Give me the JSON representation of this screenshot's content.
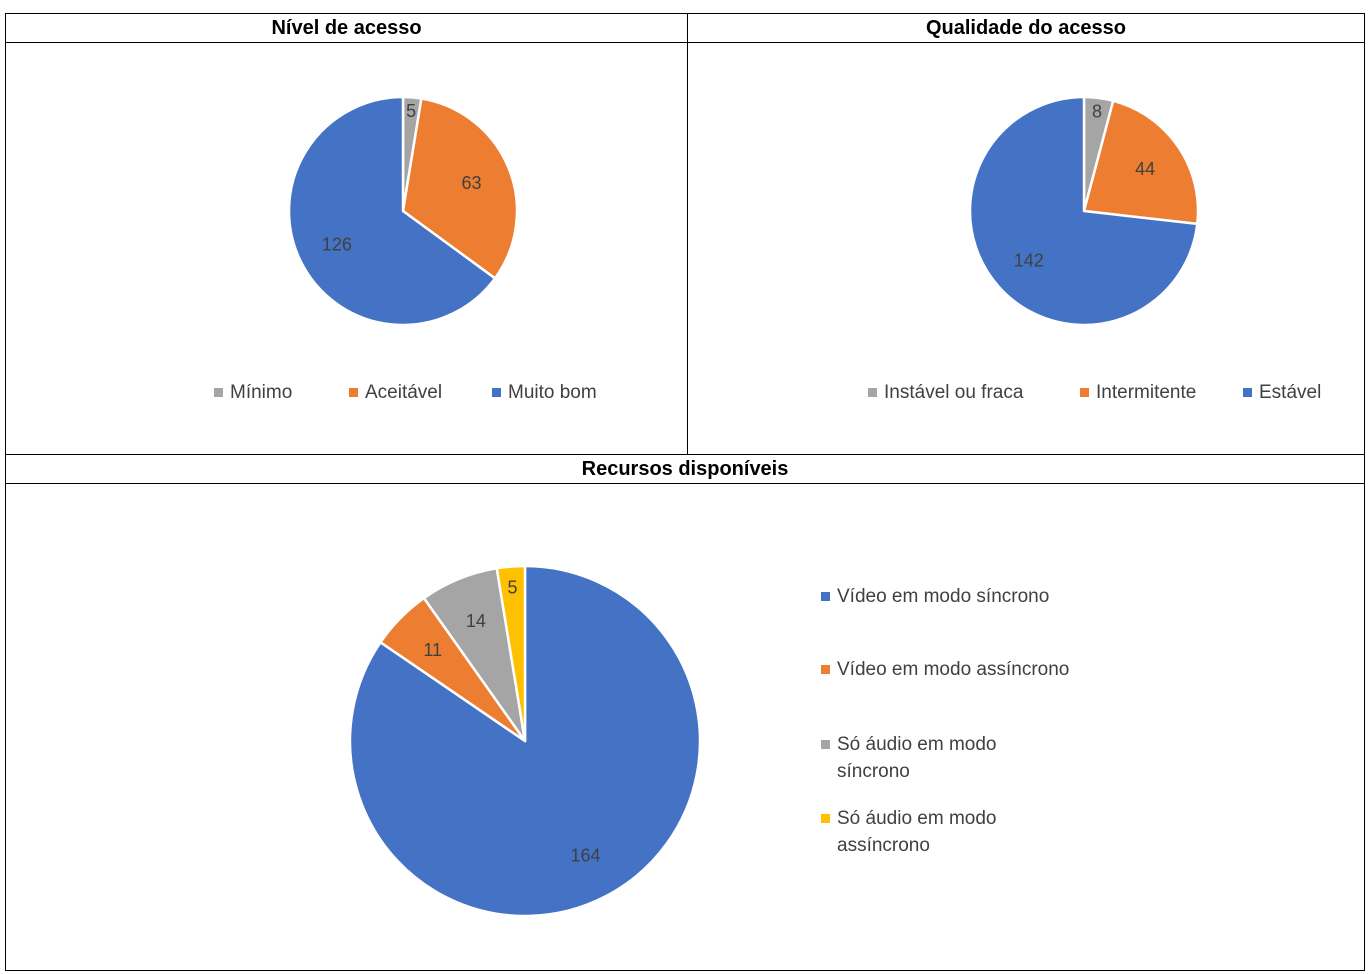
{
  "colors": {
    "blue": "#4472C4",
    "orange": "#ED7D31",
    "gray": "#A5A5A5",
    "yellow": "#FFC000"
  },
  "chart_data": [
    {
      "type": "pie",
      "title": "Nível de acesso",
      "categories": [
        "Mínimo",
        "Aceitável",
        "Muito bom"
      ],
      "values": [
        5,
        63,
        126
      ],
      "colors": [
        "#A5A5A5",
        "#ED7D31",
        "#4472C4"
      ],
      "legend": "bottom"
    },
    {
      "type": "pie",
      "title": "Qualidade do acesso",
      "categories": [
        "Instável ou fraca",
        "Intermitente",
        "Estável"
      ],
      "values": [
        8,
        44,
        142
      ],
      "colors": [
        "#A5A5A5",
        "#ED7D31",
        "#4472C4"
      ],
      "legend": "bottom"
    },
    {
      "type": "pie",
      "title": "Recursos disponíveis",
      "categories": [
        "Vídeo em modo síncrono",
        "Vídeo em modo assíncrono",
        "Só áudio em modo síncrono",
        "Só áudio em modo assíncrono"
      ],
      "legend_lines": [
        [
          "Vídeo em modo síncrono"
        ],
        [
          "Vídeo em modo assíncrono"
        ],
        [
          "Só áudio em modo",
          "síncrono"
        ],
        [
          "Só áudio em modo",
          "assíncrono"
        ]
      ],
      "values": [
        164,
        11,
        14,
        5
      ],
      "colors": [
        "#4472C4",
        "#ED7D31",
        "#A5A5A5",
        "#FFC000"
      ],
      "legend": "right"
    }
  ]
}
